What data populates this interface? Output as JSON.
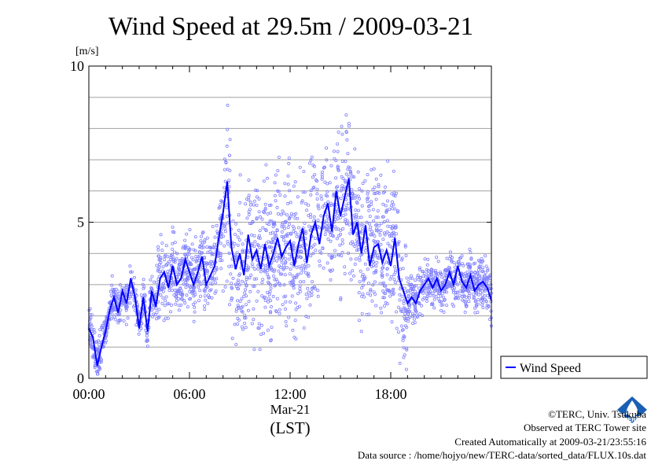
{
  "chart_data": {
    "type": "scatter",
    "title": "Wind Speed at 29.5m / 2009-03-21",
    "ylabel": "[m/s]",
    "xlabel": "(LST)",
    "x_date_label": "Mar-21",
    "xlim_hours": [
      0,
      24
    ],
    "ylim": [
      0,
      10
    ],
    "x_ticks": [
      "00:00",
      "06:00",
      "12:00",
      "18:00"
    ],
    "y_ticks": [
      "0",
      "5",
      "10"
    ],
    "grid": true,
    "legend": "bottom-right outside plot",
    "series": [
      {
        "name": "Wind Speed",
        "color": "#0000ff",
        "scatter_color": "#8080ff",
        "mean_line": {
          "x_hours": [
            0,
            0.25,
            0.5,
            0.75,
            1,
            1.25,
            1.5,
            1.75,
            2,
            2.25,
            2.5,
            2.75,
            3,
            3.25,
            3.5,
            3.75,
            4,
            4.25,
            4.5,
            4.75,
            5,
            5.25,
            5.5,
            5.75,
            6,
            6.25,
            6.5,
            6.75,
            7,
            7.25,
            7.5,
            7.75,
            8,
            8.25,
            8.5,
            8.75,
            9,
            9.25,
            9.5,
            9.75,
            10,
            10.25,
            10.5,
            10.75,
            11,
            11.25,
            11.5,
            11.75,
            12,
            12.25,
            12.5,
            12.75,
            13,
            13.25,
            13.5,
            13.75,
            14,
            14.25,
            14.5,
            14.75,
            15,
            15.25,
            15.5,
            15.75,
            16,
            16.25,
            16.5,
            16.75,
            17,
            17.25,
            17.5,
            17.75,
            18,
            18.25,
            18.5,
            18.75,
            19,
            19.25,
            19.5,
            19.75,
            20,
            20.25,
            20.5,
            20.75,
            21,
            21.25,
            21.5,
            21.75,
            22,
            22.25,
            22.5,
            22.75,
            23,
            23.25,
            23.5,
            23.75,
            24
          ],
          "y": [
            1.6,
            1.3,
            0.4,
            1.0,
            1.5,
            2.2,
            2.6,
            2.1,
            2.8,
            2.4,
            3.2,
            2.6,
            1.6,
            2.6,
            1.5,
            2.8,
            2.3,
            3.2,
            3.4,
            2.9,
            3.6,
            3.0,
            3.2,
            3.8,
            3.4,
            3.0,
            3.4,
            3.9,
            3.0,
            3.3,
            3.6,
            4.5,
            5.3,
            6.3,
            4.2,
            3.5,
            4.0,
            3.3,
            4.6,
            3.8,
            4.1,
            3.5,
            4.3,
            3.6,
            4.0,
            4.5,
            3.9,
            4.2,
            4.4,
            3.6,
            4.3,
            4.8,
            3.7,
            4.6,
            5.0,
            4.3,
            5.2,
            5.6,
            4.7,
            6.0,
            5.2,
            5.8,
            6.4,
            4.6,
            5.0,
            4.0,
            4.9,
            3.6,
            4.2,
            4.3,
            3.7,
            4.1,
            3.6,
            4.5,
            3.2,
            2.8,
            2.4,
            2.6,
            2.4,
            2.8,
            3.0,
            3.2,
            2.9,
            3.2,
            2.8,
            3.0,
            3.4,
            3.0,
            3.6,
            3.1,
            2.9,
            3.3,
            2.8,
            3.0,
            3.1,
            2.9,
            2.5
          ]
        }
      }
    ]
  },
  "legend": {
    "label": "Wind Speed"
  },
  "footer": {
    "copyright": "©TERC, Univ. Tsukuba",
    "observed": "Observed at TERC Tower site",
    "created": "Created Automatically at 2009-03-21/23:55:16",
    "source": "Data source : /home/hojyo/new/TERC-data/sorted_data/FLUX.10s.dat"
  },
  "logo": {
    "text": "TERC",
    "icon": "terc-logo-icon",
    "color": "#1a5fb4"
  }
}
